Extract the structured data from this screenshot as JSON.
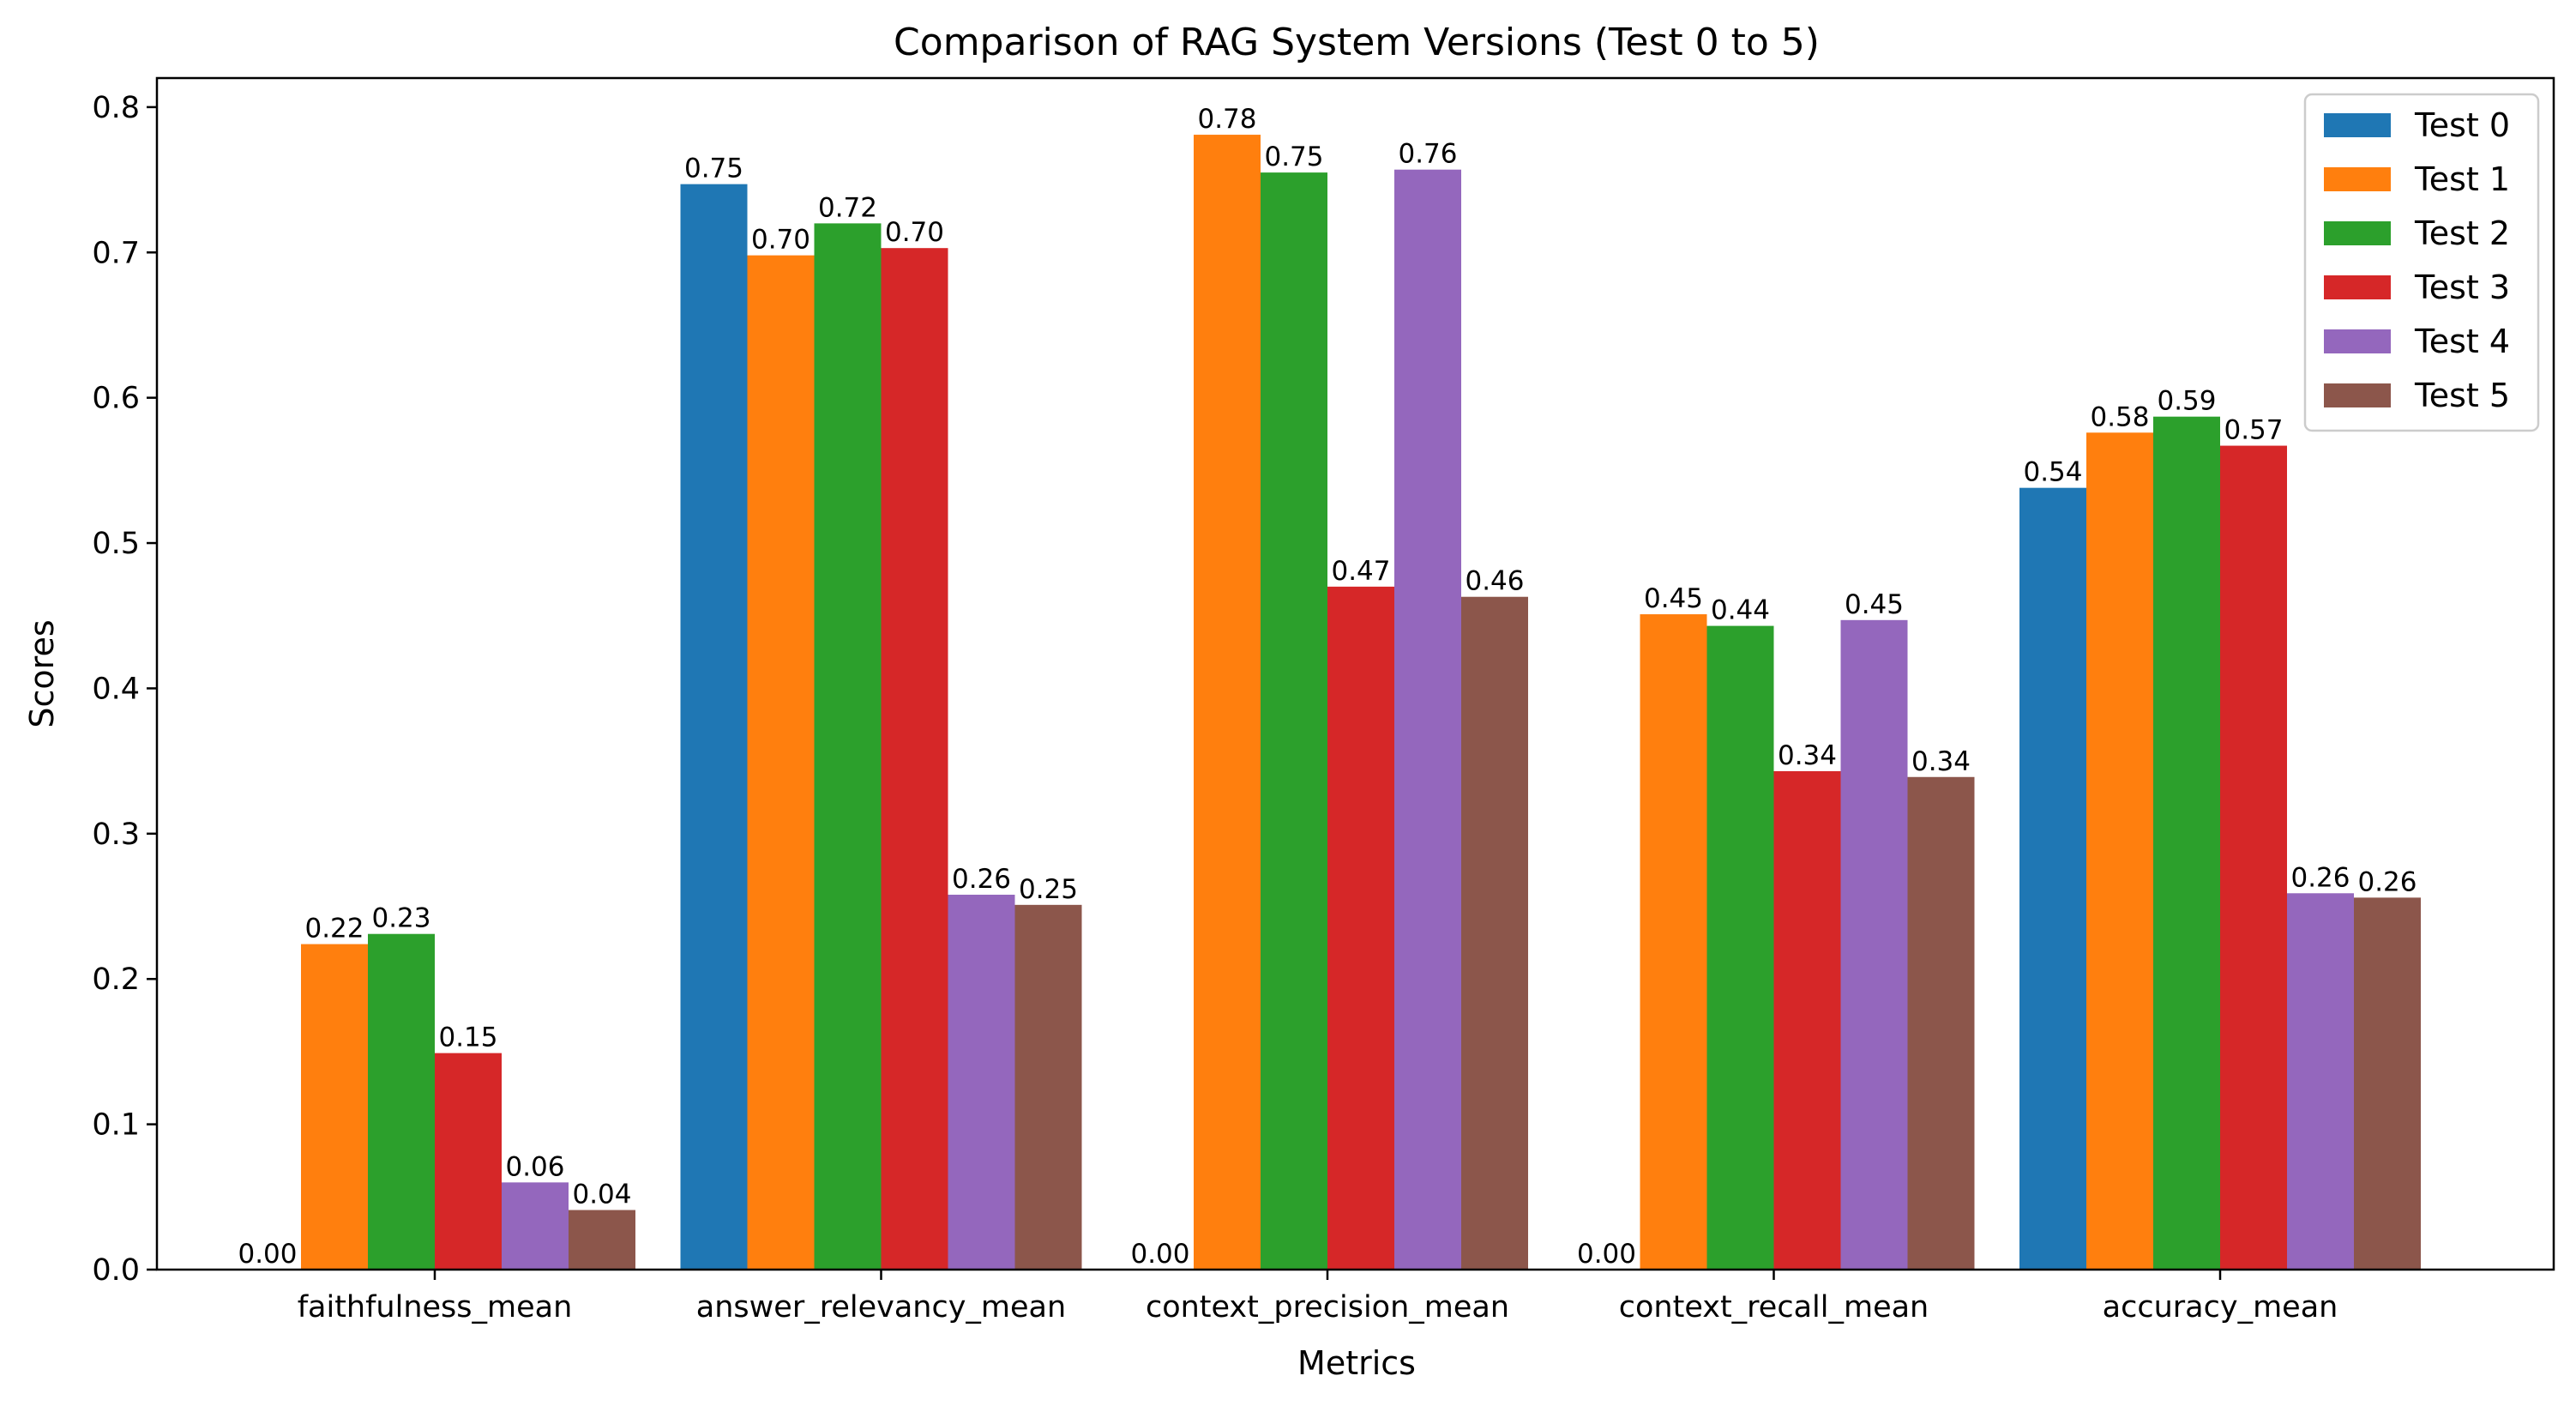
{
  "chart_data": {
    "type": "bar",
    "title": "Comparison of RAG System Versions (Test 0 to 5)",
    "xlabel": "Metrics",
    "ylabel": "Scores",
    "ylim": [
      0,
      0.82
    ],
    "yticks": [
      "0.0",
      "0.1",
      "0.2",
      "0.3",
      "0.4",
      "0.5",
      "0.6",
      "0.7",
      "0.8"
    ],
    "categories": [
      "faithfulness_mean",
      "answer_relevancy_mean",
      "context_precision_mean",
      "context_recall_mean",
      "accuracy_mean"
    ],
    "legend_position": "top-right",
    "grid": false,
    "series": [
      {
        "name": "Test 0",
        "color": "#1f77b4",
        "values": [
          0.0,
          0.747,
          0.0,
          0.0,
          0.538
        ],
        "labels": [
          "0.00",
          "0.75",
          "0.00",
          "0.00",
          "0.54"
        ]
      },
      {
        "name": "Test 1",
        "color": "#ff7f0e",
        "values": [
          0.224,
          0.698,
          0.781,
          0.451,
          0.576
        ],
        "labels": [
          "0.22",
          "0.70",
          "0.78",
          "0.45",
          "0.58"
        ]
      },
      {
        "name": "Test 2",
        "color": "#2ca02c",
        "values": [
          0.231,
          0.72,
          0.755,
          0.443,
          0.587
        ],
        "labels": [
          "0.23",
          "0.72",
          "0.75",
          "0.44",
          "0.59"
        ]
      },
      {
        "name": "Test 3",
        "color": "#d62728",
        "values": [
          0.149,
          0.703,
          0.47,
          0.343,
          0.567
        ],
        "labels": [
          "0.15",
          "0.70",
          "0.47",
          "0.34",
          "0.57"
        ]
      },
      {
        "name": "Test 4",
        "color": "#9467bd",
        "values": [
          0.06,
          0.258,
          0.757,
          0.447,
          0.259
        ],
        "labels": [
          "0.06",
          "0.26",
          "0.76",
          "0.45",
          "0.26"
        ]
      },
      {
        "name": "Test 5",
        "color": "#8c564b",
        "values": [
          0.041,
          0.251,
          0.463,
          0.339,
          0.256
        ],
        "labels": [
          "0.04",
          "0.25",
          "0.46",
          "0.34",
          "0.26"
        ]
      }
    ]
  }
}
